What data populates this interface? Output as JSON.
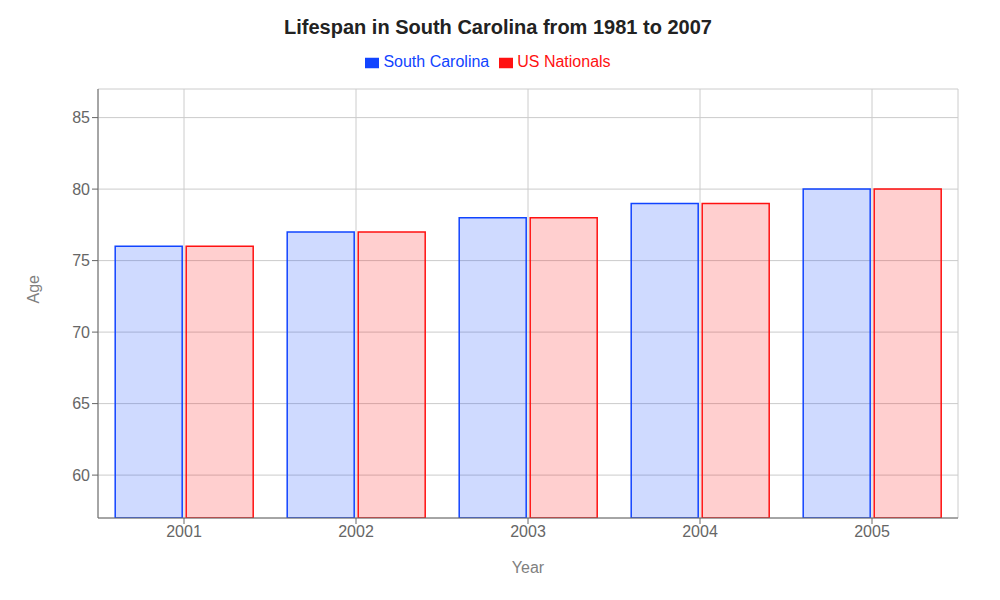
{
  "chart_data": {
    "type": "bar",
    "title": "Lifespan in South Carolina from 1981 to 2007",
    "x_label": "Year",
    "y_label": "Age",
    "categories": [
      "2001",
      "2002",
      "2003",
      "2004",
      "2005"
    ],
    "series": [
      {
        "name": "South Carolina",
        "color": "#1144ff",
        "values": [
          76,
          77,
          78,
          79,
          80
        ]
      },
      {
        "name": "US Nationals",
        "color": "#ff1111",
        "values": [
          76,
          77,
          78,
          79,
          80
        ]
      }
    ],
    "ylim": [
      57,
      87
    ],
    "yticks": [
      60,
      65,
      70,
      75,
      80,
      85
    ],
    "grid": true,
    "legend": "top"
  }
}
